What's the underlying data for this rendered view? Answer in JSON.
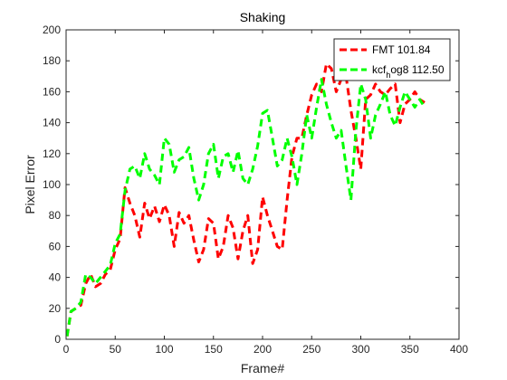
{
  "chart_data": {
    "type": "line",
    "title": "Shaking",
    "xlabel": "Frame#",
    "ylabel": "Pixel Error",
    "xlim": [
      0,
      400
    ],
    "ylim": [
      0,
      200
    ],
    "xticks": [
      0,
      50,
      100,
      150,
      200,
      250,
      300,
      350,
      400
    ],
    "yticks": [
      0,
      20,
      40,
      60,
      80,
      100,
      120,
      140,
      160,
      180,
      200
    ],
    "grid": false,
    "legend_position": "top-right",
    "series": [
      {
        "name": "FMT 101.84",
        "color": "#ff0000",
        "style": "dashed",
        "x": [
          1,
          5,
          10,
          15,
          20,
          25,
          30,
          35,
          40,
          45,
          50,
          55,
          60,
          65,
          70,
          75,
          80,
          85,
          90,
          95,
          100,
          105,
          110,
          115,
          120,
          125,
          130,
          135,
          140,
          145,
          150,
          155,
          160,
          165,
          170,
          175,
          180,
          185,
          190,
          195,
          200,
          205,
          210,
          215,
          220,
          225,
          230,
          235,
          240,
          245,
          250,
          255,
          260,
          265,
          270,
          275,
          280,
          285,
          290,
          295,
          300,
          305,
          310,
          315,
          320,
          325,
          330,
          335,
          340,
          345,
          350,
          355,
          360,
          365
        ],
        "y": [
          2,
          18,
          20,
          22,
          36,
          42,
          34,
          36,
          42,
          45,
          58,
          65,
          98,
          88,
          80,
          66,
          88,
          78,
          86,
          76,
          87,
          80,
          60,
          82,
          75,
          80,
          64,
          50,
          58,
          78,
          75,
          52,
          60,
          80,
          72,
          52,
          70,
          80,
          49,
          58,
          92,
          80,
          70,
          60,
          58,
          90,
          118,
          130,
          130,
          145,
          158,
          165,
          160,
          178,
          175,
          160,
          168,
          170,
          148,
          130,
          110,
          155,
          158,
          165,
          160,
          158,
          162,
          165,
          140,
          152,
          155,
          160,
          155,
          153
        ]
      },
      {
        "name": "kcf_hog8 112.50",
        "color": "#00ff00",
        "style": "dashed",
        "x": [
          1,
          5,
          10,
          15,
          20,
          25,
          30,
          35,
          40,
          45,
          50,
          55,
          60,
          65,
          70,
          75,
          80,
          85,
          90,
          95,
          100,
          105,
          110,
          115,
          120,
          125,
          130,
          135,
          140,
          145,
          150,
          155,
          160,
          165,
          170,
          175,
          180,
          185,
          190,
          195,
          200,
          205,
          210,
          215,
          220,
          225,
          230,
          235,
          240,
          245,
          250,
          255,
          260,
          265,
          270,
          275,
          280,
          285,
          290,
          295,
          300,
          305,
          310,
          315,
          320,
          325,
          330,
          335,
          340,
          345,
          350,
          355,
          360,
          365
        ],
        "y": [
          2,
          18,
          20,
          24,
          42,
          40,
          36,
          40,
          44,
          48,
          62,
          68,
          96,
          110,
          112,
          104,
          120,
          110,
          106,
          100,
          130,
          126,
          108,
          116,
          118,
          124,
          104,
          90,
          100,
          120,
          126,
          104,
          118,
          120,
          108,
          122,
          104,
          100,
          110,
          125,
          146,
          148,
          130,
          112,
          116,
          130,
          118,
          100,
          120,
          145,
          130,
          150,
          168,
          152,
          140,
          130,
          135,
          112,
          90,
          135,
          165,
          155,
          130,
          145,
          152,
          160,
          145,
          138,
          150,
          160,
          155,
          150,
          155,
          150
        ]
      }
    ]
  }
}
